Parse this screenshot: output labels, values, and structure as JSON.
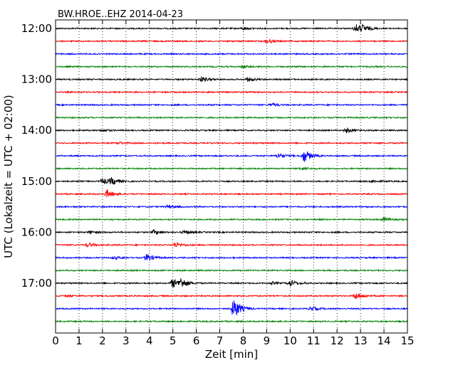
{
  "chart_data": {
    "type": "line",
    "title": "BW.HROE..EHZ 2014-04-23",
    "xlabel": "Zeit  [min]",
    "ylabel": "UTC (Lokalzeit = UTC + 02:00)",
    "xlim": [
      0,
      15
    ],
    "x_ticks": [
      "0",
      "1",
      "2",
      "3",
      "4",
      "5",
      "6",
      "7",
      "8",
      "9",
      "10",
      "11",
      "12",
      "13",
      "14",
      "15"
    ],
    "y_tick_labels": [
      "12:00",
      "13:00",
      "14:00",
      "15:00",
      "16:00",
      "17:00"
    ],
    "grid": "vertical dotted",
    "trace_colors": [
      "#000000",
      "#ff0000",
      "#0000ff",
      "#008000"
    ],
    "traces": [
      {
        "start": "12:00",
        "events": [
          {
            "t": 12.8,
            "amp": 0.6
          },
          {
            "t": 13.1,
            "amp": 0.4
          },
          {
            "t": 8.0,
            "amp": 0.2
          }
        ]
      },
      {
        "start": "12:15",
        "events": [
          {
            "t": 9.0,
            "amp": 0.3
          }
        ]
      },
      {
        "start": "12:30",
        "events": []
      },
      {
        "start": "12:45",
        "events": [
          {
            "t": 8.0,
            "amp": 0.2
          }
        ]
      },
      {
        "start": "13:00",
        "events": [
          {
            "t": 6.2,
            "amp": 0.4
          },
          {
            "t": 8.2,
            "amp": 0.3
          }
        ]
      },
      {
        "start": "13:15",
        "events": []
      },
      {
        "start": "13:30",
        "events": [
          {
            "t": 9.2,
            "amp": 0.2
          }
        ]
      },
      {
        "start": "13:45",
        "events": []
      },
      {
        "start": "14:00",
        "events": [
          {
            "t": 12.4,
            "amp": 0.35
          },
          {
            "t": 2.0,
            "amp": 0.2
          }
        ]
      },
      {
        "start": "14:15",
        "events": [
          {
            "t": 2.7,
            "amp": 0.15
          }
        ]
      },
      {
        "start": "14:30",
        "events": [
          {
            "t": 10.6,
            "amp": 1.0
          },
          {
            "t": 9.5,
            "amp": 0.4
          }
        ]
      },
      {
        "start": "14:45",
        "events": [
          {
            "t": 10.5,
            "amp": 0.2
          }
        ]
      },
      {
        "start": "15:00",
        "events": [
          {
            "t": 2.0,
            "amp": 0.5
          },
          {
            "t": 2.4,
            "amp": 0.5
          },
          {
            "t": 13.5,
            "amp": 0.2
          }
        ]
      },
      {
        "start": "15:15",
        "events": [
          {
            "t": 2.2,
            "amp": 0.6
          }
        ]
      },
      {
        "start": "15:30",
        "events": [
          {
            "t": 4.8,
            "amp": 0.2
          }
        ]
      },
      {
        "start": "15:45",
        "events": [
          {
            "t": 14.0,
            "amp": 0.3
          }
        ]
      },
      {
        "start": "16:00",
        "events": [
          {
            "t": 4.2,
            "amp": 0.35
          },
          {
            "t": 5.5,
            "amp": 0.3
          },
          {
            "t": 1.5,
            "amp": 0.2
          }
        ]
      },
      {
        "start": "16:15",
        "events": [
          {
            "t": 1.4,
            "amp": 0.3
          },
          {
            "t": 5.1,
            "amp": 0.4
          }
        ]
      },
      {
        "start": "16:30",
        "events": [
          {
            "t": 3.9,
            "amp": 0.6
          },
          {
            "t": 2.5,
            "amp": 0.2
          }
        ]
      },
      {
        "start": "16:45",
        "events": []
      },
      {
        "start": "17:00",
        "events": [
          {
            "t": 5.0,
            "amp": 0.7
          },
          {
            "t": 5.35,
            "amp": 0.7
          },
          {
            "t": 10.0,
            "amp": 0.5
          },
          {
            "t": 9.2,
            "amp": 0.2
          }
        ]
      },
      {
        "start": "17:15",
        "events": [
          {
            "t": 12.8,
            "amp": 0.5
          },
          {
            "t": 0.5,
            "amp": 0.15
          }
        ]
      },
      {
        "start": "17:30",
        "events": [
          {
            "t": 7.6,
            "amp": 1.6
          },
          {
            "t": 10.9,
            "amp": 0.35
          }
        ]
      },
      {
        "start": "17:45",
        "events": []
      }
    ]
  }
}
